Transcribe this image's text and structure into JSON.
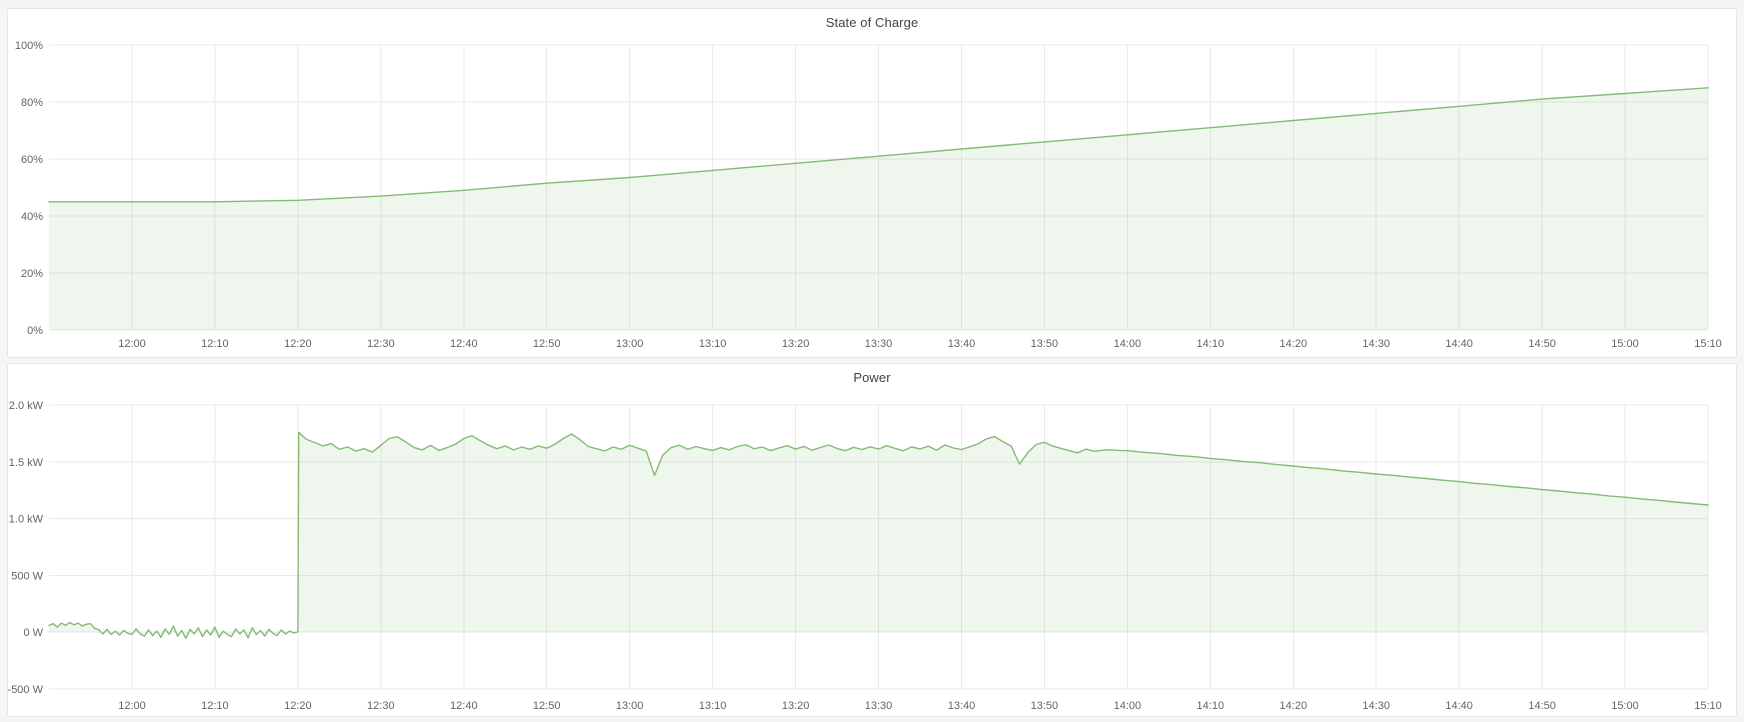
{
  "page": {
    "background": "#f4f5f6",
    "kind": "time-series dashboard"
  },
  "panels": [
    {
      "title": "State of Charge"
    },
    {
      "title": "Power"
    }
  ],
  "colors": {
    "series_green": "#83bb76",
    "series_fill": "rgba(131,187,118,0.13)",
    "grid": "#e9eaeb",
    "axis_text": "#5f646b",
    "panel_border": "#e4e5e7",
    "panel_bg": "#ffffff",
    "page_bg": "#f4f5f6",
    "title_text": "#3f4349"
  },
  "chart_data": [
    {
      "type": "area",
      "title": "State of Charge",
      "xlabel": "time of day",
      "ylabel": "percent",
      "x_range": [
        -10,
        190
      ],
      "y_range": [
        0,
        100
      ],
      "grid": true,
      "legend": "none",
      "x_ticks": [
        {
          "t": 0,
          "label": "12:00"
        },
        {
          "t": 10,
          "label": "12:10"
        },
        {
          "t": 20,
          "label": "12:20"
        },
        {
          "t": 30,
          "label": "12:30"
        },
        {
          "t": 40,
          "label": "12:40"
        },
        {
          "t": 50,
          "label": "12:50"
        },
        {
          "t": 60,
          "label": "13:00"
        },
        {
          "t": 70,
          "label": "13:10"
        },
        {
          "t": 80,
          "label": "13:20"
        },
        {
          "t": 90,
          "label": "13:30"
        },
        {
          "t": 100,
          "label": "13:40"
        },
        {
          "t": 110,
          "label": "13:50"
        },
        {
          "t": 120,
          "label": "14:00"
        },
        {
          "t": 130,
          "label": "14:10"
        },
        {
          "t": 140,
          "label": "14:20"
        },
        {
          "t": 150,
          "label": "14:30"
        },
        {
          "t": 160,
          "label": "14:40"
        },
        {
          "t": 170,
          "label": "14:50"
        },
        {
          "t": 180,
          "label": "15:00"
        },
        {
          "t": 190,
          "label": "15:10"
        }
      ],
      "y_ticks": [
        {
          "v": 0,
          "label": "0%"
        },
        {
          "v": 20,
          "label": "20%"
        },
        {
          "v": 40,
          "label": "40%"
        },
        {
          "v": 60,
          "label": "60%"
        },
        {
          "v": 80,
          "label": "80%"
        },
        {
          "v": 100,
          "label": "100%"
        }
      ],
      "series": [
        {
          "name": "State of Charge",
          "color": "#83bb76",
          "fill": "rgba(131,187,118,0.13)",
          "baseline": 0,
          "points": [
            [
              -10,
              45
            ],
            [
              0,
              45
            ],
            [
              10,
              45
            ],
            [
              20,
              45.5
            ],
            [
              30,
              47
            ],
            [
              40,
              49
            ],
            [
              50,
              51.5
            ],
            [
              60,
              53.5
            ],
            [
              70,
              56
            ],
            [
              80,
              58.5
            ],
            [
              90,
              61
            ],
            [
              100,
              63.5
            ],
            [
              110,
              66
            ],
            [
              120,
              68.5
            ],
            [
              130,
              71
            ],
            [
              140,
              73.5
            ],
            [
              150,
              76
            ],
            [
              160,
              78.5
            ],
            [
              170,
              81
            ],
            [
              180,
              83
            ],
            [
              190,
              85
            ]
          ]
        }
      ]
    },
    {
      "type": "area",
      "title": "Power",
      "xlabel": "time of day",
      "ylabel": "watts",
      "x_range": [
        -10,
        190
      ],
      "y_range": [
        -500,
        2000
      ],
      "grid": true,
      "legend": "none",
      "x_ticks": [
        {
          "t": 0,
          "label": "12:00"
        },
        {
          "t": 10,
          "label": "12:10"
        },
        {
          "t": 20,
          "label": "12:20"
        },
        {
          "t": 30,
          "label": "12:30"
        },
        {
          "t": 40,
          "label": "12:40"
        },
        {
          "t": 50,
          "label": "12:50"
        },
        {
          "t": 60,
          "label": "13:00"
        },
        {
          "t": 70,
          "label": "13:10"
        },
        {
          "t": 80,
          "label": "13:20"
        },
        {
          "t": 90,
          "label": "13:30"
        },
        {
          "t": 100,
          "label": "13:40"
        },
        {
          "t": 110,
          "label": "13:50"
        },
        {
          "t": 120,
          "label": "14:00"
        },
        {
          "t": 130,
          "label": "14:10"
        },
        {
          "t": 140,
          "label": "14:20"
        },
        {
          "t": 150,
          "label": "14:30"
        },
        {
          "t": 160,
          "label": "14:40"
        },
        {
          "t": 170,
          "label": "14:50"
        },
        {
          "t": 180,
          "label": "15:00"
        },
        {
          "t": 190,
          "label": "15:10"
        }
      ],
      "y_ticks": [
        {
          "v": -500,
          "label": "-500 W"
        },
        {
          "v": 0,
          "label": "0 W"
        },
        {
          "v": 500,
          "label": "500 W"
        },
        {
          "v": 1000,
          "label": "1.0 kW"
        },
        {
          "v": 1500,
          "label": "1.5 kW"
        },
        {
          "v": 2000,
          "label": "2.0 kW"
        }
      ],
      "series": [
        {
          "name": "Power",
          "color": "#83bb76",
          "fill": "rgba(131,187,118,0.13)",
          "baseline": 0,
          "points": [
            [
              -10,
              60
            ],
            [
              -9.5,
              75
            ],
            [
              -9,
              45
            ],
            [
              -8.5,
              80
            ],
            [
              -8,
              60
            ],
            [
              -7.5,
              85
            ],
            [
              -7,
              65
            ],
            [
              -6.5,
              80
            ],
            [
              -6,
              55
            ],
            [
              -5.5,
              70
            ],
            [
              -5,
              75
            ],
            [
              -4.5,
              35
            ],
            [
              -4,
              20
            ],
            [
              -3.5,
              -15
            ],
            [
              -3,
              25
            ],
            [
              -2.5,
              -20
            ],
            [
              -2,
              10
            ],
            [
              -1.5,
              -25
            ],
            [
              -1,
              15
            ],
            [
              -0.5,
              -10
            ],
            [
              0,
              -20
            ],
            [
              0.5,
              30
            ],
            [
              1,
              -15
            ],
            [
              1.5,
              -35
            ],
            [
              2,
              20
            ],
            [
              2.5,
              -30
            ],
            [
              3,
              10
            ],
            [
              3.5,
              -45
            ],
            [
              4,
              30
            ],
            [
              4.5,
              -20
            ],
            [
              5,
              55
            ],
            [
              5.5,
              -35
            ],
            [
              6,
              15
            ],
            [
              6.5,
              -55
            ],
            [
              7,
              25
            ],
            [
              7.5,
              -15
            ],
            [
              8,
              40
            ],
            [
              8.5,
              -40
            ],
            [
              9,
              20
            ],
            [
              9.5,
              -25
            ],
            [
              10,
              45
            ],
            [
              10.5,
              -45
            ],
            [
              11,
              10
            ],
            [
              11.5,
              -20
            ],
            [
              12,
              -40
            ],
            [
              12.5,
              30
            ],
            [
              13,
              -15
            ],
            [
              13.5,
              20
            ],
            [
              14,
              -50
            ],
            [
              14.5,
              40
            ],
            [
              15,
              -20
            ],
            [
              15.5,
              15
            ],
            [
              16,
              -35
            ],
            [
              16.5,
              25
            ],
            [
              17,
              -10
            ],
            [
              17.5,
              -30
            ],
            [
              18,
              20
            ],
            [
              18.5,
              -15
            ],
            [
              19,
              10
            ],
            [
              19.5,
              -5
            ],
            [
              19.9,
              0
            ],
            [
              20,
              5
            ],
            [
              20.1,
              1760
            ],
            [
              21,
              1700
            ],
            [
              22,
              1670
            ],
            [
              23,
              1640
            ],
            [
              24,
              1660
            ],
            [
              25,
              1610
            ],
            [
              26,
              1630
            ],
            [
              27,
              1595
            ],
            [
              28,
              1615
            ],
            [
              29,
              1585
            ],
            [
              30,
              1645
            ],
            [
              31,
              1705
            ],
            [
              32,
              1720
            ],
            [
              33,
              1675
            ],
            [
              34,
              1625
            ],
            [
              35,
              1605
            ],
            [
              36,
              1645
            ],
            [
              37,
              1600
            ],
            [
              38,
              1625
            ],
            [
              39,
              1655
            ],
            [
              40,
              1705
            ],
            [
              41,
              1730
            ],
            [
              42,
              1685
            ],
            [
              43,
              1645
            ],
            [
              44,
              1615
            ],
            [
              45,
              1640
            ],
            [
              46,
              1605
            ],
            [
              47,
              1630
            ],
            [
              48,
              1610
            ],
            [
              49,
              1640
            ],
            [
              50,
              1620
            ],
            [
              51,
              1655
            ],
            [
              52,
              1705
            ],
            [
              53,
              1745
            ],
            [
              54,
              1695
            ],
            [
              55,
              1635
            ],
            [
              56,
              1615
            ],
            [
              57,
              1595
            ],
            [
              58,
              1630
            ],
            [
              59,
              1610
            ],
            [
              60,
              1645
            ],
            [
              61,
              1620
            ],
            [
              62,
              1595
            ],
            [
              63,
              1380
            ],
            [
              64,
              1560
            ],
            [
              65,
              1625
            ],
            [
              66,
              1645
            ],
            [
              67,
              1610
            ],
            [
              68,
              1635
            ],
            [
              69,
              1615
            ],
            [
              70,
              1600
            ],
            [
              71,
              1625
            ],
            [
              72,
              1605
            ],
            [
              73,
              1635
            ],
            [
              74,
              1650
            ],
            [
              75,
              1615
            ],
            [
              76,
              1630
            ],
            [
              77,
              1598
            ],
            [
              78,
              1622
            ],
            [
              79,
              1642
            ],
            [
              80,
              1612
            ],
            [
              81,
              1636
            ],
            [
              82,
              1602
            ],
            [
              83,
              1626
            ],
            [
              84,
              1648
            ],
            [
              85,
              1618
            ],
            [
              86,
              1598
            ],
            [
              87,
              1628
            ],
            [
              88,
              1608
            ],
            [
              89,
              1632
            ],
            [
              90,
              1612
            ],
            [
              91,
              1642
            ],
            [
              92,
              1618
            ],
            [
              93,
              1598
            ],
            [
              94,
              1632
            ],
            [
              95,
              1612
            ],
            [
              96,
              1638
            ],
            [
              97,
              1602
            ],
            [
              98,
              1648
            ],
            [
              99,
              1622
            ],
            [
              100,
              1608
            ],
            [
              101,
              1632
            ],
            [
              102,
              1658
            ],
            [
              103,
              1702
            ],
            [
              104,
              1722
            ],
            [
              105,
              1678
            ],
            [
              106,
              1638
            ],
            [
              107,
              1480
            ],
            [
              108,
              1580
            ],
            [
              109,
              1652
            ],
            [
              110,
              1672
            ],
            [
              111,
              1638
            ],
            [
              112,
              1618
            ],
            [
              113,
              1598
            ],
            [
              114,
              1578
            ],
            [
              115,
              1612
            ],
            [
              116,
              1592
            ],
            [
              117,
              1602
            ],
            [
              118,
              1606
            ],
            [
              119,
              1600
            ],
            [
              120,
              1598
            ],
            [
              122,
              1584
            ],
            [
              124,
              1572
            ],
            [
              126,
              1556
            ],
            [
              128,
              1546
            ],
            [
              130,
              1530
            ],
            [
              132,
              1518
            ],
            [
              134,
              1502
            ],
            [
              136,
              1492
            ],
            [
              138,
              1475
            ],
            [
              140,
              1463
            ],
            [
              142,
              1448
            ],
            [
              144,
              1436
            ],
            [
              146,
              1420
            ],
            [
              148,
              1408
            ],
            [
              150,
              1393
            ],
            [
              152,
              1381
            ],
            [
              154,
              1365
            ],
            [
              156,
              1353
            ],
            [
              158,
              1338
            ],
            [
              160,
              1326
            ],
            [
              162,
              1310
            ],
            [
              164,
              1298
            ],
            [
              166,
              1283
            ],
            [
              168,
              1271
            ],
            [
              170,
              1255
            ],
            [
              172,
              1243
            ],
            [
              174,
              1228
            ],
            [
              176,
              1216
            ],
            [
              178,
              1200
            ],
            [
              180,
              1188
            ],
            [
              182,
              1173
            ],
            [
              184,
              1161
            ],
            [
              186,
              1146
            ],
            [
              188,
              1133
            ],
            [
              190,
              1120
            ]
          ]
        }
      ]
    }
  ]
}
